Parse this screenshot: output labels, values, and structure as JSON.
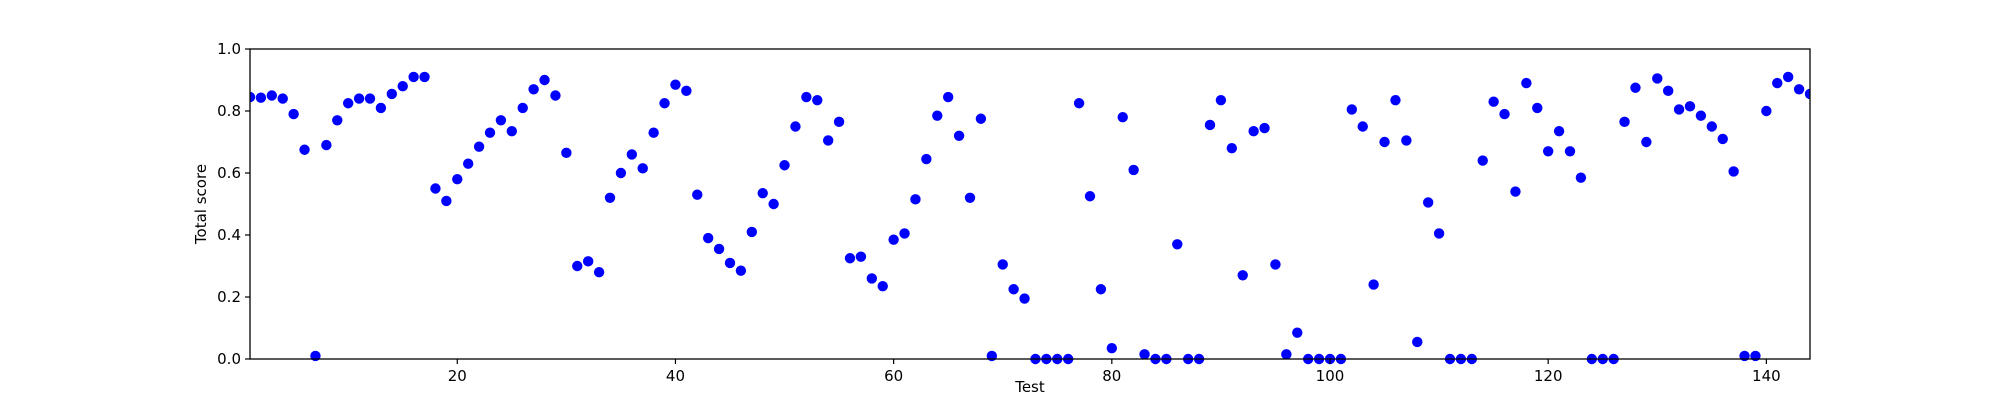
{
  "chart_data": {
    "type": "scatter",
    "title": "",
    "xlabel": "Test",
    "ylabel": "Total score",
    "xlim": [
      1,
      144
    ],
    "ylim": [
      0,
      1.0
    ],
    "xticks": [
      20,
      40,
      60,
      80,
      100,
      120,
      140
    ],
    "xtick_labels": [
      "20",
      "40",
      "60",
      "80",
      "100",
      "120",
      "140"
    ],
    "yticks": [
      0.0,
      0.2,
      0.4,
      0.6,
      0.8,
      1.0
    ],
    "ytick_labels": [
      "0.0",
      "0.2",
      "0.4",
      "0.6",
      "0.8",
      "1.0"
    ],
    "grid": false,
    "legend": "none",
    "marker_color": "#0000ff",
    "series": [
      {
        "x": [
          1,
          2,
          3,
          4,
          5,
          6,
          7,
          8,
          9,
          10,
          11,
          12,
          13,
          14,
          15,
          16,
          17,
          18,
          19,
          20,
          21,
          22,
          23,
          24,
          25,
          26,
          27,
          28,
          29,
          30,
          31,
          32,
          33,
          34,
          35,
          36,
          37,
          38,
          39,
          40,
          41,
          42,
          43,
          44,
          45,
          46,
          47,
          48,
          49,
          50,
          51,
          52,
          53,
          54,
          55,
          56,
          57,
          58,
          59,
          60,
          61,
          62,
          63,
          64,
          65,
          66,
          67,
          68,
          69,
          70,
          71,
          72,
          73,
          74,
          75,
          76,
          77,
          78,
          79,
          80,
          81,
          82,
          83,
          84,
          85,
          86,
          87,
          88,
          89,
          90,
          91,
          92,
          93,
          94,
          95,
          96,
          97,
          98,
          99,
          100,
          101,
          102,
          103,
          104,
          105,
          106,
          107,
          108,
          109,
          110,
          111,
          112,
          113,
          114,
          115,
          116,
          117,
          118,
          119,
          120,
          121,
          122,
          123,
          124,
          125,
          126,
          127,
          128,
          129,
          130,
          131,
          132,
          133,
          134,
          135,
          136,
          137,
          138,
          139,
          140,
          141,
          142,
          143,
          144
        ],
        "y": [
          0.845,
          0.843,
          0.85,
          0.84,
          0.79,
          0.675,
          0.01,
          0.69,
          0.77,
          0.825,
          0.84,
          0.84,
          0.81,
          0.855,
          0.88,
          0.91,
          0.91,
          0.55,
          0.51,
          0.58,
          0.63,
          0.685,
          0.73,
          0.77,
          0.735,
          0.81,
          0.87,
          0.9,
          0.85,
          0.665,
          0.3,
          0.315,
          0.28,
          0.52,
          0.6,
          0.66,
          0.615,
          0.73,
          0.825,
          0.885,
          0.865,
          0.53,
          0.39,
          0.355,
          0.31,
          0.285,
          0.41,
          0.535,
          0.5,
          0.625,
          0.75,
          0.845,
          0.835,
          0.705,
          0.765,
          0.325,
          0.33,
          0.26,
          0.235,
          0.385,
          0.405,
          0.515,
          0.645,
          0.785,
          0.845,
          0.72,
          0.52,
          0.775,
          0.01,
          0.305,
          0.225,
          0.195,
          0.0,
          0.0,
          0.0,
          0.0,
          0.825,
          0.525,
          0.225,
          0.035,
          0.78,
          0.61,
          0.015,
          0.0,
          0.0,
          0.37,
          0.0,
          0.0,
          0.755,
          0.835,
          0.68,
          0.27,
          0.735,
          0.745,
          0.305,
          0.015,
          0.085,
          0.0,
          0.0,
          0.0,
          0.0,
          0.805,
          0.75,
          0.24,
          0.7,
          0.835,
          0.705,
          0.055,
          0.505,
          0.405,
          0.0,
          0.0,
          0.0,
          0.64,
          0.83,
          0.79,
          0.54,
          0.89,
          0.81,
          0.67,
          0.735,
          0.67,
          0.585,
          0.0,
          0.0,
          0.0,
          0.765,
          0.875,
          0.7,
          0.905,
          0.865,
          0.805,
          0.815,
          0.785,
          0.75,
          0.71,
          0.605,
          0.01,
          0.01,
          0.8,
          0.89,
          0.91,
          0.87,
          0.855
        ]
      }
    ]
  }
}
